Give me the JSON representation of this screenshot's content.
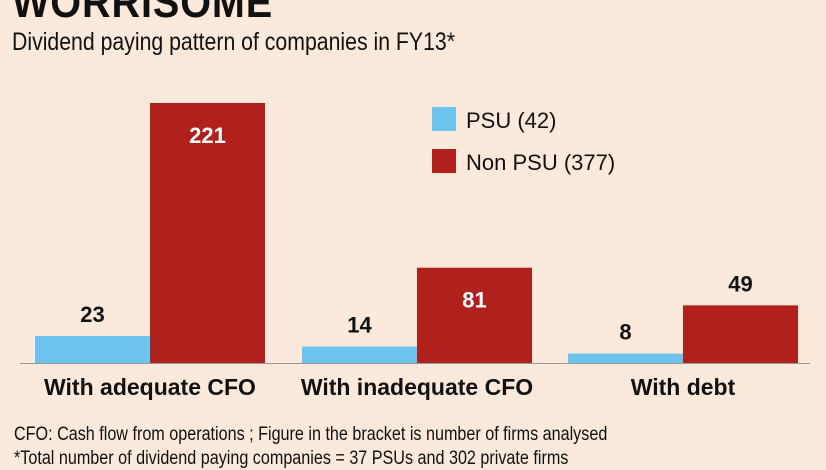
{
  "chart_data": {
    "type": "bar",
    "title": "WORRISOME",
    "subtitle": "Dividend paying pattern of companies in FY13*",
    "categories": [
      "With adequate CFO",
      "With inadequate CFO",
      "With debt"
    ],
    "series": [
      {
        "name": "PSU (42)",
        "values": [
          23,
          14,
          8
        ],
        "color": "#6cc4ee"
      },
      {
        "name": "Non PSU (377)",
        "values": [
          221,
          81,
          49
        ],
        "color": "#b0201c"
      }
    ],
    "legend": "top-center",
    "grid": false,
    "ylim": [
      0,
      221
    ],
    "footnotes": [
      "CFO: Cash flow from operations ; Figure in the bracket is number of firms analysed",
      "*Total number of dividend paying companies = 37 PSUs and 302 private firms"
    ]
  }
}
